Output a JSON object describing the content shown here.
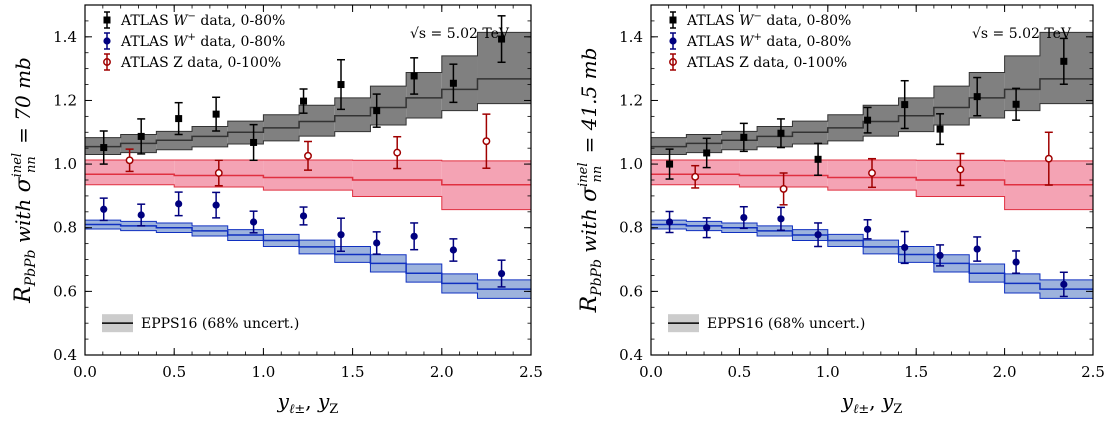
{
  "chart_data": [
    {
      "type": "line",
      "panel": "left",
      "annotation": "√s = 5.02 TeV",
      "ylabel": "R_PbPb with σ_nn^inel = 70 mb",
      "ylabel_parts": {
        "main": "R",
        "sub": "PbPb",
        "mid": " with ",
        "sigma": "σ",
        "sigma_sup": "inel",
        "sigma_sub": "nn",
        "rest": " = 70 mb"
      },
      "xlabel": "y_ℓ±, y_Z",
      "xlabel_parts": {
        "a": "y",
        "a_sub": "ℓ±",
        "sep": ", ",
        "b": "y",
        "b_sub": "Z"
      },
      "xlim": [
        0.0,
        2.5
      ],
      "ylim": [
        0.4,
        1.5
      ],
      "xticks": [
        "0.0",
        "0.5",
        "1.0",
        "1.5",
        "2.0",
        "2.5"
      ],
      "yticks": [
        "0.4",
        "0.6",
        "0.8",
        "1.0",
        "1.2",
        "1.4"
      ],
      "grid": false,
      "legend_placement": "top-left",
      "band_legend_placement": "bottom-left",
      "band_legend_label": "EPPS16 (68% uncert.)",
      "data_series": [
        {
          "name": "ATLAS W⁻ data, 0-80%",
          "legend_plain": "ATLAS ",
          "legend_sym": "W",
          "legend_sup": "−",
          "legend_rest": " data, 0-80%",
          "marker": "square",
          "color": "#000000",
          "x": [
            0.105,
            0.315,
            0.525,
            0.735,
            0.945,
            1.225,
            1.435,
            1.635,
            1.845,
            2.065,
            2.335
          ],
          "y": [
            1.052,
            1.087,
            1.143,
            1.157,
            1.068,
            1.198,
            1.25,
            1.168,
            1.277,
            1.254,
            1.393
          ],
          "yerr": [
            0.052,
            0.055,
            0.05,
            0.053,
            0.056,
            0.038,
            0.078,
            0.052,
            0.057,
            0.06,
            0.073
          ]
        },
        {
          "name": "ATLAS W⁺ data, 0-80%",
          "legend_plain": "ATLAS ",
          "legend_sym": "W",
          "legend_sup": "+",
          "legend_rest": " data, 0-80%",
          "marker": "circle",
          "color": "#00007f",
          "x": [
            0.105,
            0.315,
            0.525,
            0.735,
            0.945,
            1.225,
            1.435,
            1.635,
            1.845,
            2.065,
            2.335
          ],
          "y": [
            0.858,
            0.84,
            0.875,
            0.871,
            0.818,
            0.837,
            0.778,
            0.752,
            0.773,
            0.73,
            0.656
          ],
          "yerr": [
            0.035,
            0.034,
            0.037,
            0.04,
            0.034,
            0.028,
            0.052,
            0.035,
            0.042,
            0.035,
            0.042
          ]
        },
        {
          "name": "ATLAS Z data, 0-100%",
          "legend_plain": "ATLAS Z data, 0-100%",
          "legend_sym": "",
          "legend_sup": "",
          "legend_rest": "",
          "marker": "open-circle",
          "color": "#a00000",
          "x": [
            0.25,
            0.75,
            1.25,
            1.75,
            2.25
          ],
          "y": [
            1.012,
            0.972,
            1.026,
            1.036,
            1.072
          ],
          "yerr": [
            0.035,
            0.04,
            0.045,
            0.05,
            0.085
          ]
        }
      ],
      "bands": [
        {
          "name": "EPPS16 W⁻",
          "fill": "#808080",
          "stroke": "#333333",
          "edges": [
            0.0,
            0.2,
            0.4,
            0.6,
            0.8,
            1.0,
            1.2,
            1.4,
            1.6,
            1.8,
            2.0,
            2.2,
            2.5
          ],
          "center": [
            1.055,
            1.065,
            1.075,
            1.087,
            1.1,
            1.114,
            1.134,
            1.152,
            1.178,
            1.208,
            1.235,
            1.268
          ],
          "low": [
            1.03,
            1.036,
            1.045,
            1.054,
            1.063,
            1.073,
            1.088,
            1.102,
            1.123,
            1.145,
            1.168,
            1.19
          ],
          "high": [
            1.083,
            1.093,
            1.103,
            1.118,
            1.135,
            1.155,
            1.185,
            1.208,
            1.245,
            1.288,
            1.34,
            1.414
          ]
        },
        {
          "name": "EPPS16 Z",
          "fill": "#f4a3b4",
          "stroke": "#e03040",
          "edges": [
            0.0,
            0.5,
            1.0,
            1.5,
            2.0,
            2.5
          ],
          "center": [
            0.968,
            0.964,
            0.958,
            0.95,
            0.935
          ],
          "low": [
            0.935,
            0.928,
            0.918,
            0.898,
            0.857
          ],
          "high": [
            1.013,
            1.013,
            1.013,
            1.012,
            1.01
          ]
        },
        {
          "name": "EPPS16 W⁺",
          "fill": "#9db3dd",
          "stroke": "#1030c0",
          "edges": [
            0.0,
            0.2,
            0.4,
            0.6,
            0.8,
            1.0,
            1.2,
            1.4,
            1.6,
            1.8,
            2.0,
            2.2,
            2.5
          ],
          "center": [
            0.81,
            0.806,
            0.8,
            0.79,
            0.777,
            0.76,
            0.74,
            0.716,
            0.688,
            0.657,
            0.625,
            0.607
          ],
          "low": [
            0.796,
            0.791,
            0.785,
            0.774,
            0.76,
            0.741,
            0.718,
            0.691,
            0.661,
            0.629,
            0.595,
            0.578
          ],
          "high": [
            0.824,
            0.82,
            0.815,
            0.806,
            0.794,
            0.779,
            0.761,
            0.741,
            0.715,
            0.686,
            0.655,
            0.636
          ]
        }
      ]
    },
    {
      "type": "line",
      "panel": "right",
      "annotation": "√s = 5.02 TeV",
      "ylabel": "R_PbPb with σ_nn^inel = 41.5 mb",
      "ylabel_parts": {
        "main": "R",
        "sub": "PbPb",
        "mid": " with ",
        "sigma": "σ",
        "sigma_sup": "inel",
        "sigma_sub": "nn",
        "rest": " = 41.5 mb"
      },
      "xlabel": "y_ℓ±, y_Z",
      "xlabel_parts": {
        "a": "y",
        "a_sub": "ℓ±",
        "sep": ", ",
        "b": "y",
        "b_sub": "Z"
      },
      "xlim": [
        0.0,
        2.5
      ],
      "ylim": [
        0.4,
        1.5
      ],
      "xticks": [
        "0.0",
        "0.5",
        "1.0",
        "1.5",
        "2.0",
        "2.5"
      ],
      "yticks": [
        "0.4",
        "0.6",
        "0.8",
        "1.0",
        "1.2",
        "1.4"
      ],
      "grid": false,
      "legend_placement": "top-left",
      "band_legend_placement": "bottom-left",
      "band_legend_label": "EPPS16 (68% uncert.)",
      "data_series": [
        {
          "name": "ATLAS W⁻ data, 0-80%",
          "legend_plain": "ATLAS ",
          "legend_sym": "W",
          "legend_sup": "−",
          "legend_rest": " data, 0-80%",
          "marker": "square",
          "color": "#000000",
          "x": [
            0.105,
            0.315,
            0.525,
            0.735,
            0.945,
            1.225,
            1.435,
            1.635,
            1.845,
            2.065,
            2.335
          ],
          "y": [
            1.0,
            1.035,
            1.084,
            1.097,
            1.015,
            1.138,
            1.187,
            1.11,
            1.212,
            1.188,
            1.323
          ],
          "yerr": [
            0.047,
            0.046,
            0.044,
            0.045,
            0.05,
            0.04,
            0.075,
            0.048,
            0.06,
            0.05,
            0.072
          ]
        },
        {
          "name": "ATLAS W⁺ data, 0-80%",
          "legend_plain": "ATLAS ",
          "legend_sym": "W",
          "legend_sup": "+",
          "legend_rest": " data, 0-80%",
          "marker": "circle",
          "color": "#00007f",
          "x": [
            0.105,
            0.315,
            0.525,
            0.735,
            0.945,
            1.225,
            1.435,
            1.635,
            1.845,
            2.065,
            2.335
          ],
          "y": [
            0.818,
            0.8,
            0.832,
            0.828,
            0.778,
            0.795,
            0.738,
            0.713,
            0.733,
            0.692,
            0.622
          ],
          "yerr": [
            0.033,
            0.031,
            0.034,
            0.036,
            0.037,
            0.03,
            0.05,
            0.033,
            0.038,
            0.035,
            0.038
          ]
        },
        {
          "name": "ATLAS Z data, 0-100%",
          "legend_plain": "ATLAS Z data, 0-100%",
          "legend_sym": "",
          "legend_sup": "",
          "legend_rest": "",
          "marker": "open-circle",
          "color": "#a00000",
          "x": [
            0.25,
            0.75,
            1.25,
            1.75,
            2.25
          ],
          "y": [
            0.96,
            0.922,
            0.972,
            0.983,
            1.017
          ],
          "yerr": [
            0.035,
            0.05,
            0.045,
            0.05,
            0.083
          ]
        }
      ],
      "bands": [
        {
          "name": "EPPS16 W⁻",
          "fill": "#808080",
          "stroke": "#333333",
          "edges": [
            0.0,
            0.2,
            0.4,
            0.6,
            0.8,
            1.0,
            1.2,
            1.4,
            1.6,
            1.8,
            2.0,
            2.2,
            2.5
          ],
          "center": [
            1.055,
            1.065,
            1.075,
            1.087,
            1.1,
            1.114,
            1.134,
            1.152,
            1.178,
            1.208,
            1.235,
            1.268
          ],
          "low": [
            1.03,
            1.036,
            1.045,
            1.054,
            1.063,
            1.073,
            1.088,
            1.102,
            1.123,
            1.145,
            1.168,
            1.19
          ],
          "high": [
            1.083,
            1.093,
            1.103,
            1.118,
            1.135,
            1.155,
            1.185,
            1.208,
            1.245,
            1.288,
            1.34,
            1.414
          ]
        },
        {
          "name": "EPPS16 Z",
          "fill": "#f4a3b4",
          "stroke": "#e03040",
          "edges": [
            0.0,
            0.5,
            1.0,
            1.5,
            2.0,
            2.5
          ],
          "center": [
            0.968,
            0.964,
            0.958,
            0.95,
            0.935
          ],
          "low": [
            0.935,
            0.928,
            0.918,
            0.898,
            0.857
          ],
          "high": [
            1.013,
            1.013,
            1.013,
            1.012,
            1.01
          ]
        },
        {
          "name": "EPPS16 W⁺",
          "fill": "#9db3dd",
          "stroke": "#1030c0",
          "edges": [
            0.0,
            0.2,
            0.4,
            0.6,
            0.8,
            1.0,
            1.2,
            1.4,
            1.6,
            1.8,
            2.0,
            2.2,
            2.5
          ],
          "center": [
            0.81,
            0.806,
            0.8,
            0.79,
            0.777,
            0.76,
            0.74,
            0.716,
            0.688,
            0.657,
            0.625,
            0.607
          ],
          "low": [
            0.796,
            0.791,
            0.785,
            0.774,
            0.76,
            0.741,
            0.718,
            0.691,
            0.661,
            0.629,
            0.595,
            0.578
          ],
          "high": [
            0.824,
            0.82,
            0.815,
            0.806,
            0.794,
            0.779,
            0.761,
            0.741,
            0.715,
            0.686,
            0.655,
            0.636
          ]
        }
      ]
    }
  ]
}
